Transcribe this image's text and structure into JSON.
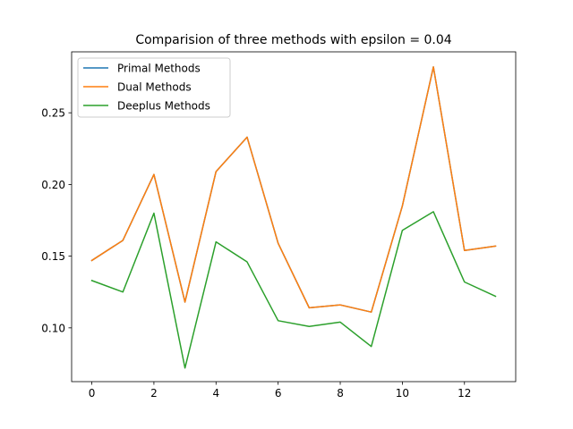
{
  "chart_data": {
    "type": "line",
    "title": "Comparision of three methods with epsilon = 0.04",
    "xlabel": "",
    "ylabel": "",
    "x": [
      0,
      1,
      2,
      3,
      4,
      5,
      6,
      7,
      8,
      9,
      10,
      11,
      12,
      13
    ],
    "xlim": [
      -0.65,
      13.65
    ],
    "ylim": [
      0.0625,
      0.2925
    ],
    "xticks": [
      0,
      2,
      4,
      6,
      8,
      10,
      12
    ],
    "yticks": [
      0.1,
      0.15,
      0.2,
      0.25
    ],
    "xtick_labels": [
      "0",
      "2",
      "4",
      "6",
      "8",
      "10",
      "12"
    ],
    "ytick_labels": [
      "0.10",
      "0.15",
      "0.20",
      "0.25"
    ],
    "grid": false,
    "legend_position": "upper-left",
    "series": [
      {
        "name": "Primal Methods",
        "color": "#1f77b4",
        "values": [
          0.147,
          0.161,
          0.207,
          0.118,
          0.209,
          0.233,
          0.159,
          0.114,
          0.116,
          0.111,
          0.185,
          0.282,
          0.154,
          0.157
        ]
      },
      {
        "name": "Dual Methods",
        "color": "#ff7f0e",
        "values": [
          0.147,
          0.161,
          0.207,
          0.118,
          0.209,
          0.233,
          0.159,
          0.114,
          0.116,
          0.111,
          0.185,
          0.282,
          0.154,
          0.157
        ]
      },
      {
        "name": "Deeplus Methods",
        "color": "#2ca02c",
        "values": [
          0.133,
          0.125,
          0.18,
          0.072,
          0.16,
          0.146,
          0.105,
          0.101,
          0.104,
          0.087,
          0.168,
          0.181,
          0.132,
          0.122
        ]
      }
    ]
  }
}
